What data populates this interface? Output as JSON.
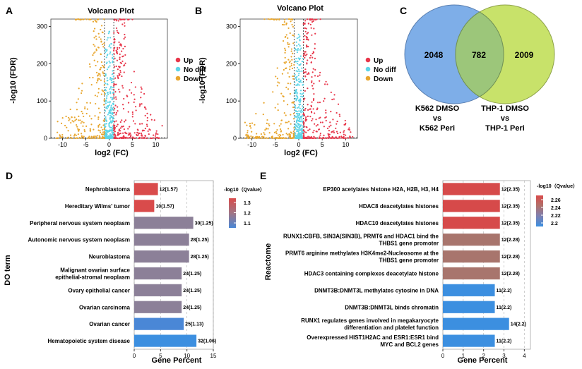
{
  "figure": {
    "panel_labels": [
      "A",
      "B",
      "C",
      "D",
      "E"
    ]
  },
  "chart_data": [
    {
      "id": "A",
      "type": "scatter",
      "title": "Volcano Plot",
      "xlabel": "log2 (FC)",
      "ylabel": "-log10 (FDR)",
      "xlim": [
        -12.5,
        12.5
      ],
      "ylim": [
        0,
        320
      ],
      "xticks": [
        -10,
        -5,
        0,
        5,
        10
      ],
      "yticks": [
        0,
        100,
        200,
        300
      ],
      "thresholds": {
        "log2fc": [
          -1,
          1
        ],
        "fdr_line": 1.3
      },
      "legend": {
        "position": "right",
        "items": [
          {
            "label": "Up",
            "color": "#e8374b"
          },
          {
            "label": "No diff",
            "color": "#5dd5e8"
          },
          {
            "label": "Down",
            "color": "#e8a62e"
          }
        ]
      },
      "series_summary": [
        {
          "name": "Up",
          "x_range": [
            1,
            11.5
          ],
          "y_max": 320
        },
        {
          "name": "No diff",
          "x_range": [
            -1,
            1
          ],
          "y_max": 320
        },
        {
          "name": "Down",
          "x_range": [
            -11.5,
            -1
          ],
          "y_max": 320
        }
      ]
    },
    {
      "id": "B",
      "type": "scatter",
      "title": "Volcano Plot",
      "xlabel": "log2 (FC)",
      "ylabel": "-log10 (FDR)",
      "xlim": [
        -12.5,
        12.5
      ],
      "ylim": [
        0,
        320
      ],
      "xticks": [
        -10,
        -5,
        0,
        5,
        10
      ],
      "yticks": [
        0,
        100,
        200,
        300
      ],
      "thresholds": {
        "log2fc": [
          -1,
          1
        ],
        "fdr_line": 1.3
      },
      "legend": {
        "position": "right",
        "items": [
          {
            "label": "Up",
            "color": "#e8374b"
          },
          {
            "label": "No diff",
            "color": "#5dd5e8"
          },
          {
            "label": "Down",
            "color": "#e8a62e"
          }
        ]
      },
      "series_summary": [
        {
          "name": "Up",
          "x_range": [
            1,
            12
          ],
          "y_max": 320
        },
        {
          "name": "No diff",
          "x_range": [
            -1,
            1
          ],
          "y_max": 320
        },
        {
          "name": "Down",
          "x_range": [
            -11.5,
            -1
          ],
          "y_max": 320
        }
      ]
    },
    {
      "id": "C",
      "type": "venn",
      "sets": [
        {
          "label_lines": [
            "K562 DMSO",
            "vs",
            "K562 Peri"
          ],
          "only": "2048",
          "color": "#7eaee8"
        },
        {
          "label_lines": [
            "THP-1 DMSO",
            "vs",
            "THP-1 Peri"
          ],
          "only": "2009",
          "color": "#c8e26a"
        }
      ],
      "intersection": "782",
      "intersection_color": "#9cc67a"
    },
    {
      "id": "D",
      "type": "bar",
      "orientation": "horizontal",
      "ylabel": "DO term",
      "xlabel": "Gene Percent",
      "xlim": [
        0,
        15
      ],
      "xticks": [
        0,
        5,
        10,
        15
      ],
      "legend_title": "-log10（Qvalue）",
      "legend_ticks": [
        "1.3",
        "1.2",
        "1.1"
      ],
      "color_range": [
        1.06,
        1.57
      ],
      "colorbar": [
        "#d94b4b",
        "#a07585",
        "#4a87d6"
      ],
      "categories": [
        "Nephroblastoma",
        "Hereditary Wilms' tumor",
        "Peripheral nervous system neoplasm",
        "Autonomic nervous system neoplasm",
        "Neuroblastoma",
        "Malignant ovarian surface\nepithelial-stromal neoplasm",
        "Ovary epithelial cancer",
        "Ovarian carcinoma",
        "Ovarian cancer",
        "Hematopoietic system disease"
      ],
      "values": [
        4.5,
        3.8,
        11.2,
        10.4,
        10.4,
        9.0,
        9.0,
        9.0,
        9.4,
        11.8
      ],
      "bar_labels": [
        "12(1.57)",
        "10(1.57)",
        "30(1.25)",
        "28(1.25)",
        "28(1.25)",
        "24(1.25)",
        "24(1.25)",
        "24(1.25)",
        "25(1.13)",
        "32(1.06)"
      ],
      "bar_colors": [
        "#d94b4b",
        "#d94b4b",
        "#8c8098",
        "#8c8098",
        "#8c8098",
        "#8c8098",
        "#8c8098",
        "#8c8098",
        "#4a87d6",
        "#3c8fe0"
      ]
    },
    {
      "id": "E",
      "type": "bar",
      "orientation": "horizontal",
      "ylabel": "Reactome",
      "xlabel": "Gene Percent",
      "xlim": [
        0,
        4.3
      ],
      "xticks": [
        0,
        1,
        2,
        3,
        4
      ],
      "legend_title": "-log10（Qvalue）",
      "legend_ticks": [
        "2.26",
        "2.24",
        "2.22",
        "2.2"
      ],
      "color_range": [
        2.2,
        2.35
      ],
      "colorbar": [
        "#d94b4b",
        "#b0706a",
        "#7f7fb0",
        "#3c8fe0"
      ],
      "categories": [
        "EP300 acetylates histone H2A, H2B, H3, H4",
        "HDAC8 deacetylates histones",
        "HDAC10 deacetylates histones",
        "RUNX1:CBFB, SIN3A(SIN3B), PRMT6 and HDAC1 bind the\nTHBS1 gene promoter",
        "PRMT6 arginine methylates H3K4me2-Nucleosome at the\nTHBS1 gene promoter",
        "HDAC3 containing complexes deacetylate histone",
        "DNMT3B:DNMT3L methylates cytosine in DNA",
        "DNMT3B:DNMT3L binds chromatin",
        "RUNX1 regulates genes involved in megakaryocyte\ndifferentiation and platelet function",
        "Overexpressed HIST1H2AC and ESR1:ESR1 bind\nMYC and BCL2 genes"
      ],
      "values": [
        2.8,
        2.8,
        2.8,
        2.8,
        2.8,
        2.8,
        2.55,
        2.55,
        3.25,
        2.55
      ],
      "bar_labels": [
        "12(2.35)",
        "12(2.35)",
        "12(2.35)",
        "12(2.28)",
        "12(2.28)",
        "12(2.28)",
        "11(2.2)",
        "11(2.2)",
        "14(2.2)",
        "11(2.2)"
      ],
      "bar_colors": [
        "#d64a4a",
        "#d64a4a",
        "#d64a4a",
        "#a8756d",
        "#a8756d",
        "#a8756d",
        "#3c8fe0",
        "#3c8fe0",
        "#3c8fe0",
        "#3c8fe0"
      ]
    }
  ]
}
